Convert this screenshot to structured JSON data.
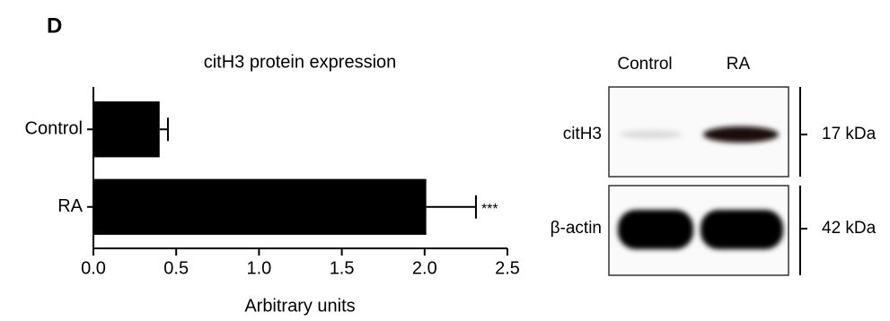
{
  "panel_label": "D",
  "chart_data": {
    "type": "hbar",
    "title": "citH3 protein expression",
    "xlabel": "Arbitrary units",
    "categories": [
      "Control",
      "RA"
    ],
    "values": [
      0.4,
      2.01
    ],
    "errors": [
      0.05,
      0.3
    ],
    "significance": [
      null,
      "***"
    ],
    "color": "#000000",
    "xlim": [
      0,
      2.5
    ],
    "xticks": [
      {
        "value": 0,
        "label": "0.0"
      },
      0.5,
      {
        "value": 1,
        "label": "1.0"
      },
      1.5,
      {
        "value": 2,
        "label": "2.0"
      },
      2.5
    ]
  },
  "blot": {
    "lanes": [
      "Control",
      "RA"
    ],
    "rows": [
      {
        "label": "citH3",
        "size": "17 kDa"
      },
      {
        "label": "β-actin",
        "size": "42 kDa"
      }
    ]
  }
}
